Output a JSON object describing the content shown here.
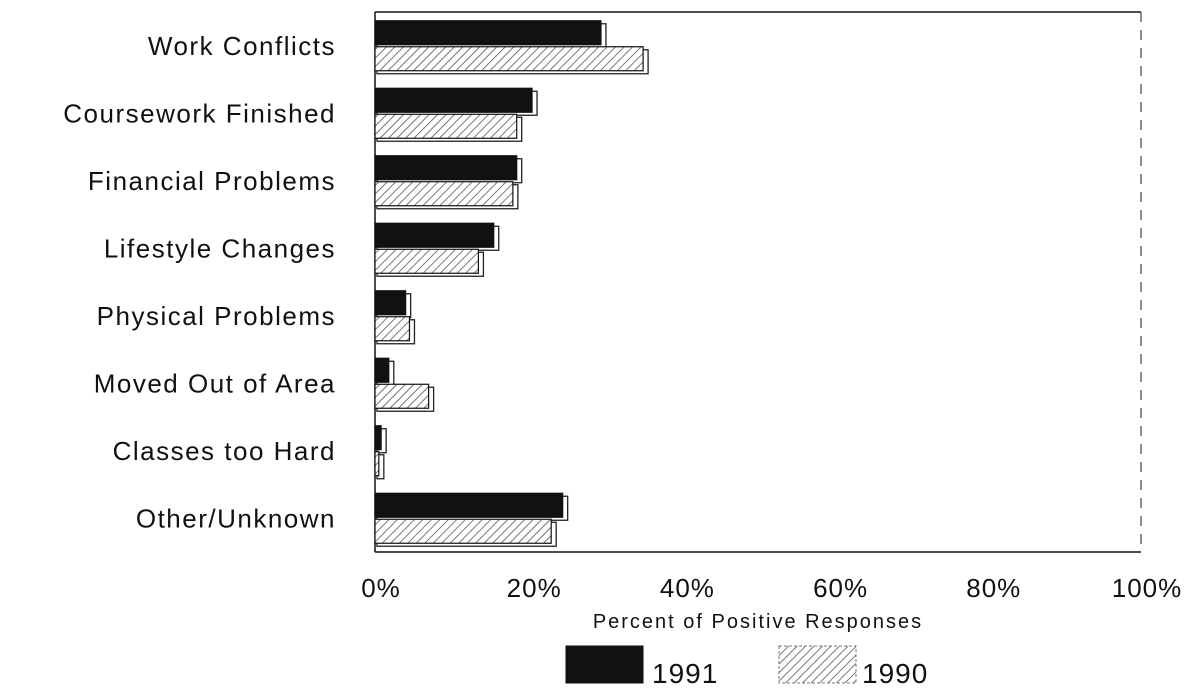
{
  "chart_data": {
    "type": "bar",
    "orientation": "horizontal",
    "categories": [
      "Work Conflicts",
      "Coursework Finished",
      "Financial Problems",
      "Lifestyle Changes",
      "Physical Problems",
      "Moved Out of Area",
      "Classes too Hard",
      "Other/Unknown"
    ],
    "series": [
      {
        "name": "1991",
        "values": [
          29.5,
          20.5,
          18.5,
          15.5,
          4.0,
          1.8,
          0.8,
          24.5
        ],
        "color": "#111111"
      },
      {
        "name": "1990",
        "values": [
          35.0,
          18.5,
          18.0,
          13.5,
          4.5,
          7.0,
          0.5,
          23.0
        ],
        "color": "#bdbdbd"
      }
    ],
    "xlabel": "Percent of Positive Responses",
    "xlim": [
      0,
      100
    ],
    "xticks": [
      "0%",
      "20%",
      "40%",
      "60%",
      "80%",
      "100%"
    ],
    "legend_position": "bottom",
    "grid": false
  }
}
